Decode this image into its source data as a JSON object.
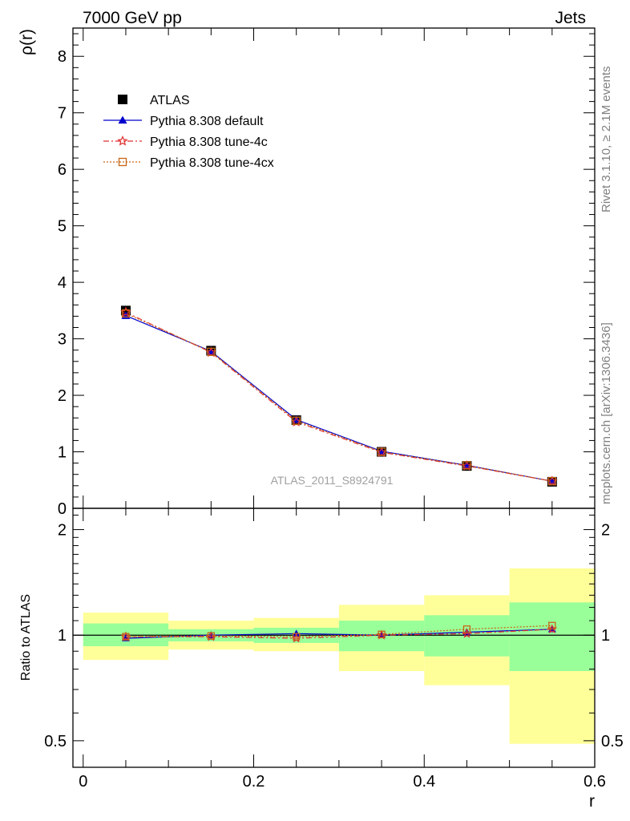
{
  "header": {
    "left": "7000 GeV pp",
    "right": "Jets"
  },
  "side_labels": {
    "rivet": "Rivet 3.1.10, ≥ 2.1M events",
    "mcplots": "mcplots.cern.ch [arXiv:1306.3436]"
  },
  "watermark": "ATLAS_2011_S8924791",
  "colors": {
    "atlas": "#000000",
    "default": "#0000cc",
    "tune4c": "#e03030",
    "tune4cx": "#c86414",
    "band_inner": "#99ff99",
    "band_outer": "#ffff99"
  },
  "chart_data": [
    {
      "type": "line",
      "ylabel": "ρ(r)",
      "xlim": [
        -0.012,
        0.6
      ],
      "ylim": [
        0,
        8.5
      ],
      "yticks": [
        0,
        1,
        2,
        3,
        4,
        5,
        6,
        7,
        8
      ],
      "yticklabels": [
        "0",
        "1",
        "2",
        "3",
        "4",
        "5",
        "6",
        "7",
        "8"
      ],
      "legend": "top-left",
      "x": [
        0.05,
        0.15,
        0.25,
        0.35,
        0.45,
        0.55
      ],
      "series": [
        {
          "name": "ATLAS",
          "marker": "square",
          "values": [
            3.5,
            2.79,
            1.56,
            1.0,
            0.75,
            0.47
          ]
        },
        {
          "name": "Pythia 8.308 default",
          "marker": "triangle",
          "values": [
            3.41,
            2.78,
            1.57,
            1.01,
            0.76,
            0.48
          ]
        },
        {
          "name": "Pythia 8.308 tune-4c",
          "marker": "star",
          "values": [
            3.47,
            2.76,
            1.53,
            0.99,
            0.75,
            0.48
          ]
        },
        {
          "name": "Pythia 8.308 tune-4cx",
          "marker": "open-square",
          "values": [
            3.45,
            2.77,
            1.55,
            1.0,
            0.76,
            0.48
          ]
        }
      ]
    },
    {
      "type": "line",
      "ylabel": "Ratio to ATLAS",
      "xlabel": "r",
      "xlim": [
        -0.012,
        0.6
      ],
      "ylim": [
        0.42,
        2.3
      ],
      "log_y": true,
      "xticks": [
        0,
        0.2,
        0.4,
        0.6
      ],
      "xticklabels": [
        "0",
        "0.2",
        "0.4",
        "0.6"
      ],
      "yticks": [
        0.5,
        1,
        2
      ],
      "yticklabels": [
        "0.5",
        "1",
        "2"
      ],
      "x": [
        0.05,
        0.15,
        0.25,
        0.35,
        0.45,
        0.55
      ],
      "band_x_edges": [
        0,
        0.1,
        0.2,
        0.3,
        0.4,
        0.5,
        0.6
      ],
      "band_inner": [
        [
          0.93,
          1.08
        ],
        [
          0.96,
          1.04
        ],
        [
          0.95,
          1.05
        ],
        [
          0.9,
          1.1
        ],
        [
          0.87,
          1.14
        ],
        [
          0.79,
          1.24
        ]
      ],
      "band_outer": [
        [
          0.85,
          1.16
        ],
        [
          0.91,
          1.1
        ],
        [
          0.9,
          1.12
        ],
        [
          0.79,
          1.22
        ],
        [
          0.72,
          1.3
        ],
        [
          0.49,
          1.55
        ]
      ],
      "series": [
        {
          "name": "Pythia 8.308 default",
          "values": [
            0.98,
            1.0,
            1.01,
            1.0,
            1.02,
            1.04
          ]
        },
        {
          "name": "Pythia 8.308 tune-4c",
          "values": [
            0.99,
            0.99,
            0.98,
            1.0,
            1.01,
            1.04
          ]
        },
        {
          "name": "Pythia 8.308 tune-4cx",
          "values": [
            0.99,
            0.995,
            0.99,
            1.005,
            1.04,
            1.065
          ]
        }
      ]
    }
  ]
}
